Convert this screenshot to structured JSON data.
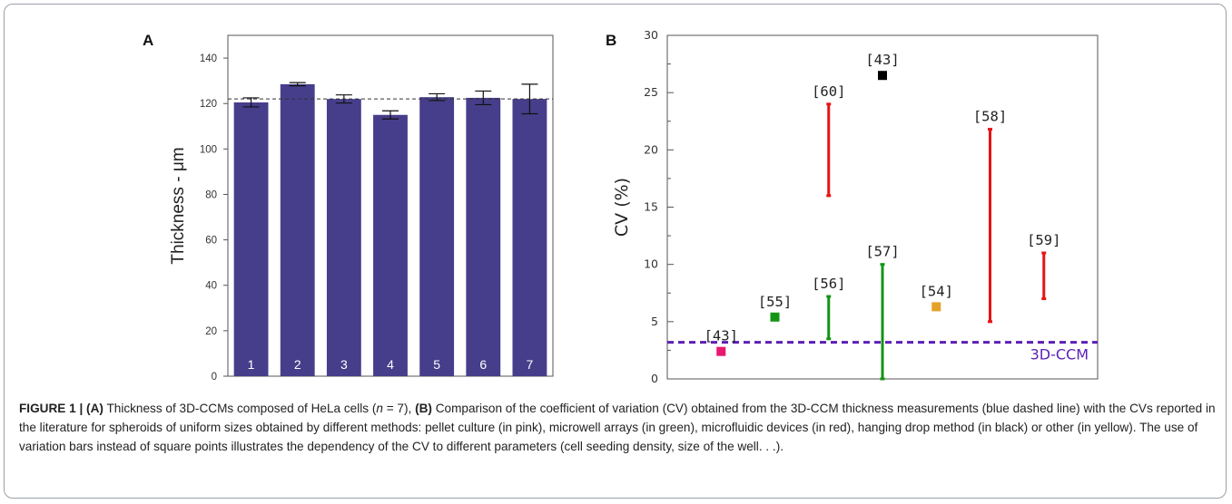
{
  "chart_data": [
    {
      "type": "bar",
      "panel_label": "A",
      "categories": [
        "1",
        "2",
        "3",
        "4",
        "5",
        "6",
        "7"
      ],
      "values": [
        120.5,
        128.5,
        122,
        115,
        122.8,
        122.5,
        122
      ],
      "errors": [
        2,
        0.7,
        1.8,
        1.8,
        1.5,
        3,
        6.5
      ],
      "reference_line": 122,
      "title": "",
      "xlabel": "",
      "ylabel": "Thickness - μm",
      "ylim": [
        0,
        150
      ],
      "yticks": [
        0,
        20,
        40,
        60,
        80,
        100,
        120,
        140
      ],
      "bar_color": "#463e8a"
    },
    {
      "type": "scatter",
      "panel_label": "B",
      "title": "",
      "xlabel": "",
      "ylabel": "CV (%)",
      "ylim": [
        0,
        30
      ],
      "yticks": [
        0,
        5,
        10,
        15,
        20,
        25,
        30
      ],
      "reference_line": {
        "value": 3.2,
        "label": "3D-CCM",
        "color": "#5b1fb5"
      },
      "points": [
        {
          "label": "[43]",
          "x": 1,
          "y": 2.4,
          "color": "#e8176f"
        },
        {
          "label": "[55]",
          "x": 2,
          "y": 5.4,
          "color": "#149414"
        },
        {
          "label": "[43]",
          "x": 4,
          "y": 26.5,
          "color": "#000000"
        },
        {
          "label": "[54]",
          "x": 5,
          "y": 6.3,
          "color": "#e6a12a"
        }
      ],
      "ranges": [
        {
          "label": "[60]",
          "x": 3,
          "low": 16,
          "high": 24,
          "color": "#e61414"
        },
        {
          "label": "[56]",
          "x": 3,
          "low": 3.5,
          "high": 7.2,
          "color": "#149414"
        },
        {
          "label": "[57]",
          "x": 4,
          "low": 0,
          "high": 10,
          "color": "#149414"
        },
        {
          "label": "[58]",
          "x": 6,
          "low": 5,
          "high": 21.8,
          "color": "#e61414"
        },
        {
          "label": "[59]",
          "x": 7,
          "low": 7,
          "high": 11,
          "color": "#e61414"
        }
      ],
      "xlim": [
        0,
        8
      ]
    }
  ],
  "caption": {
    "lead": "FIGURE 1 | (A)",
    "text_1": " Thickness of 3D-CCMs composed of HeLa cells (",
    "n_italic": "n",
    "text_2": " = 7), ",
    "b_bold": "(B)",
    "text_3": " Comparison of the coefficient of variation (CV) obtained from the 3D-CCM thickness measurements (blue dashed line) with the CVs reported in the literature for spheroids of uniform sizes obtained by different methods: pellet culture (in pink), microwell arrays (in green), microfluidic devices (in red), hanging drop method (in black) or other (in yellow). The use of variation bars instead of square points illustrates the dependency of the CV to different parameters (cell seeding density, size of the well. . .)."
  }
}
